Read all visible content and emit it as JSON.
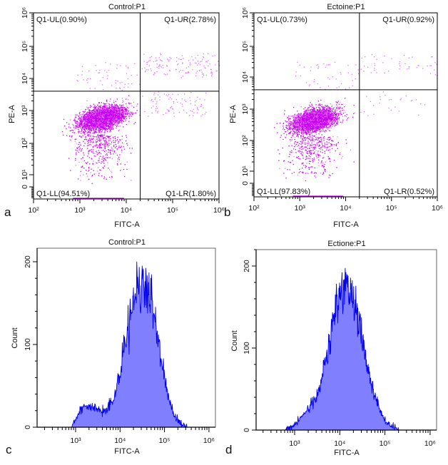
{
  "colors": {
    "dots": "#c800f0",
    "dots_light": "#e070ff",
    "hist_fill": "#8080ff",
    "hist_line": "#0000ee",
    "axes": "#000000",
    "gate": "#000000"
  },
  "chart_data": [
    {
      "panel": "a",
      "type": "scatter",
      "title": "Control:P1",
      "xlabel": "FITC-A",
      "ylabel": "PE-A",
      "xscale": "log",
      "yscale": "biexponential",
      "xlim": [
        100,
        1000000
      ],
      "ylim": [
        0,
        1000000
      ],
      "x_tick_labels": [
        "10²",
        "10³",
        "10⁴",
        "10⁵",
        "10⁶"
      ],
      "y_tick_labels": [
        "0",
        "10¹",
        "10²",
        "10³",
        "10⁴",
        "10⁵",
        "10⁶"
      ],
      "quadrant_gate": {
        "x": 20000,
        "y": 4000
      },
      "quadrants": {
        "UL": "Q1-UL(0.90%)",
        "UR": "Q1-UR(2.78%)",
        "LL": "Q1-LL(94.51%)",
        "LR": "Q1-LR(1.80%)"
      },
      "percentages": {
        "UL": 0.9,
        "UR": 2.78,
        "LL": 94.51,
        "LR": 1.8
      },
      "main_population_center": {
        "x": 3000,
        "y": 600
      }
    },
    {
      "panel": "b",
      "type": "scatter",
      "title": "Ectoine:P1",
      "xlabel": "FITC-A",
      "ylabel": "PE-A",
      "xscale": "log",
      "yscale": "biexponential",
      "xlim": [
        100,
        1000000
      ],
      "ylim": [
        0,
        1000000
      ],
      "x_tick_labels": [
        "10²",
        "10³",
        "10⁴",
        "10⁵",
        "10⁶"
      ],
      "y_tick_labels": [
        "0",
        "10¹",
        "10²",
        "10³",
        "10⁴",
        "10⁵",
        "10⁶"
      ],
      "quadrant_gate": {
        "x": 20000,
        "y": 4000
      },
      "quadrants": {
        "UL": "Q1-UL(0.73%)",
        "UR": "Q1-UR(0.92%)",
        "LL": "Q1-LL(97.83%)",
        "LR": "Q1-LR(0.52%)"
      },
      "percentages": {
        "UL": 0.73,
        "UR": 0.92,
        "LL": 97.83,
        "LR": 0.52
      },
      "main_population_center": {
        "x": 2000,
        "y": 450
      }
    },
    {
      "panel": "c",
      "type": "area",
      "title": "Control:P1",
      "xlabel": "FITC-A",
      "ylabel": "Count",
      "xscale": "log",
      "ylim": [
        0,
        200
      ],
      "x_tick_labels": [
        "10³",
        "10⁴",
        "10⁵",
        "10⁶"
      ],
      "y_tick_labels": [
        "0",
        "100",
        "200"
      ],
      "x": [
        800,
        1000,
        1300,
        1600,
        2000,
        2500,
        3200,
        4000,
        5000,
        6300,
        8000,
        10000,
        12600,
        16000,
        20000,
        25000,
        32000,
        40000,
        50000,
        63000,
        80000,
        100000,
        126000,
        160000,
        200000,
        250000,
        320000
      ],
      "counts": [
        2,
        8,
        22,
        25,
        26,
        24,
        22,
        20,
        21,
        30,
        42,
        68,
        98,
        125,
        150,
        172,
        172,
        165,
        150,
        125,
        90,
        60,
        35,
        15,
        8,
        3,
        1
      ]
    },
    {
      "panel": "d",
      "type": "area",
      "title": "Ectione:P1",
      "xlabel": "FITC-A",
      "ylabel": "Count",
      "xscale": "log",
      "ylim": [
        0,
        200
      ],
      "x_tick_labels": [
        "10³",
        "10⁴",
        "10⁵",
        "10⁶"
      ],
      "y_tick_labels": [
        "0",
        "100",
        "200"
      ],
      "x": [
        630,
        800,
        1000,
        1300,
        1600,
        2000,
        2500,
        3200,
        4000,
        5000,
        6300,
        8000,
        10000,
        12600,
        16000,
        20000,
        25000,
        32000,
        40000,
        50000,
        63000,
        80000,
        100000,
        126000,
        160000,
        200000
      ],
      "counts": [
        1,
        3,
        6,
        14,
        20,
        27,
        34,
        45,
        65,
        92,
        120,
        148,
        168,
        175,
        170,
        155,
        135,
        110,
        82,
        58,
        38,
        22,
        12,
        6,
        3,
        1
      ]
    }
  ]
}
